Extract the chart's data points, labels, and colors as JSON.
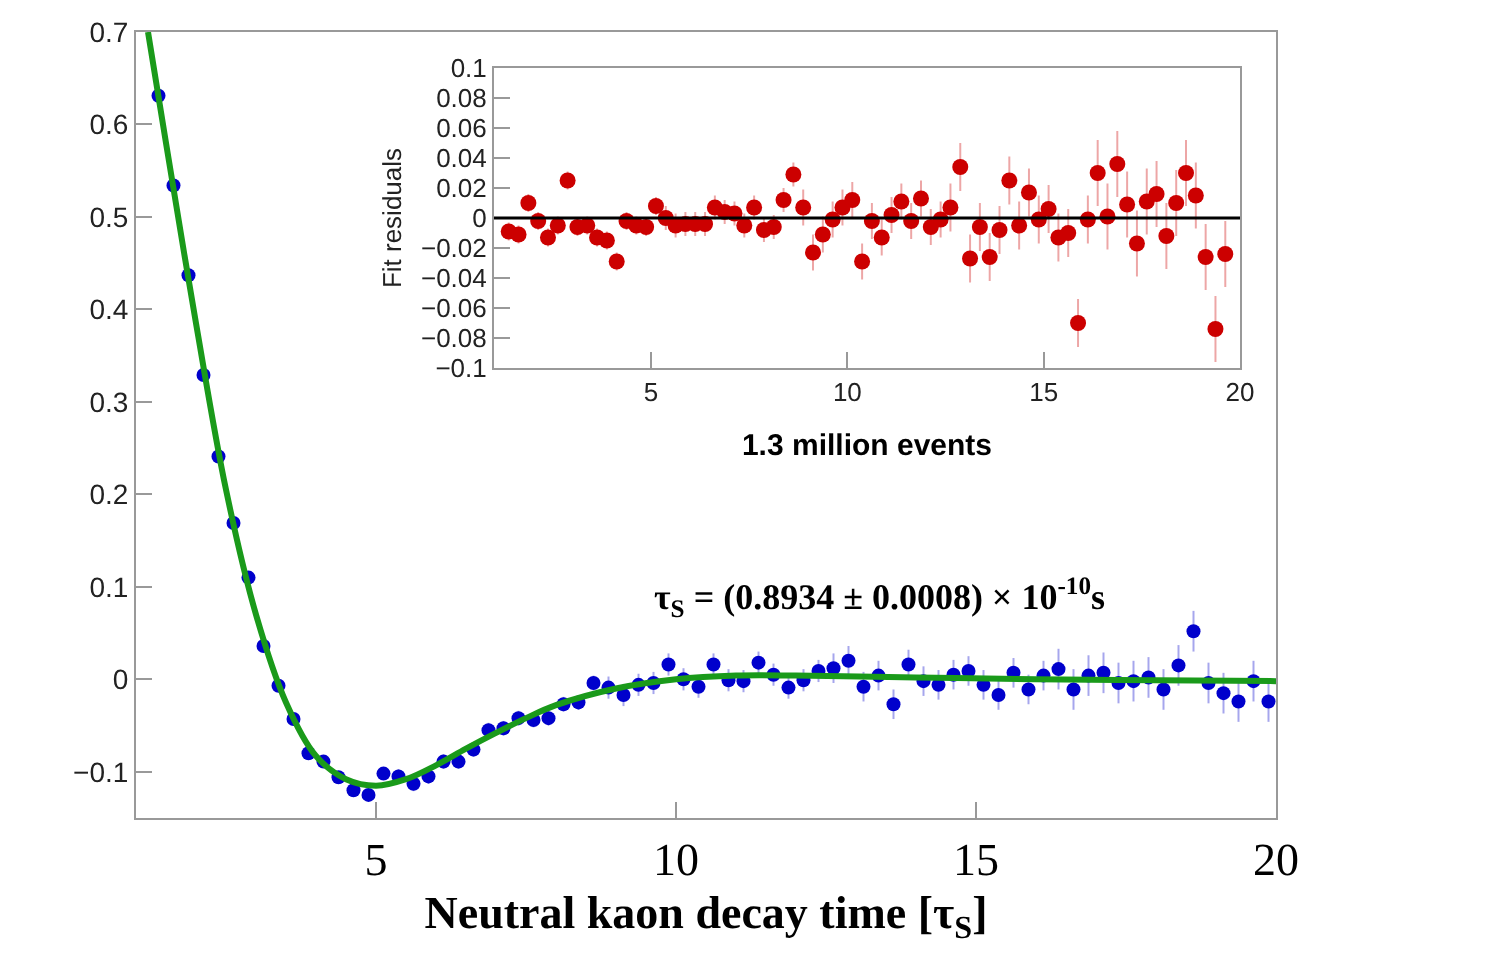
{
  "chart_data": [
    {
      "type": "scatter",
      "xlabel": "Neutral kaon decay time [τ$_{S}$]",
      "annotations": [
        "τ$_{S}$ = (0.8934 ± 0.0008) × 10$^{-10}$s"
      ],
      "xlim": [
        1,
        20
      ],
      "ylim": [
        -0.15,
        0.7
      ],
      "xticks": [
        5,
        10,
        15,
        20
      ],
      "yticks": [
        {
          "value": -0.1,
          "label": "−0.1"
        },
        0,
        0.1,
        0.2,
        0.3,
        0.4,
        0.5,
        0.6,
        0.7
      ],
      "legend": false,
      "marker": "circle",
      "series": [
        {
          "color": "#0000cc",
          "x": [
            1.375,
            1.625,
            1.875,
            2.125,
            2.375,
            2.625,
            2.875,
            3.125,
            3.375,
            3.625,
            3.875,
            4.125,
            4.375,
            4.625,
            4.875,
            5.125,
            5.375,
            5.625,
            5.875,
            6.125,
            6.375,
            6.625,
            6.875,
            7.125,
            7.375,
            7.625,
            7.875,
            8.125,
            8.375,
            8.625,
            8.875,
            9.125,
            9.375,
            9.625,
            9.875,
            10.125,
            10.375,
            10.625,
            10.875,
            11.125,
            11.375,
            11.625,
            11.875,
            12.125,
            12.375,
            12.625,
            12.875,
            13.125,
            13.375,
            13.625,
            13.875,
            14.125,
            14.375,
            14.625,
            14.875,
            15.125,
            15.375,
            15.625,
            15.875,
            16.125,
            16.375,
            16.625,
            16.875,
            17.125,
            17.375,
            17.625,
            17.875,
            18.125,
            18.375,
            18.625,
            18.875,
            19.125,
            19.375,
            19.625,
            19.875
          ],
          "values": [
            0.631,
            0.534,
            0.437,
            0.329,
            0.241,
            0.169,
            0.11,
            0.036,
            -0.007,
            -0.043,
            -0.08,
            -0.089,
            -0.106,
            -0.12,
            -0.125,
            -0.102,
            -0.105,
            -0.113,
            -0.105,
            -0.089,
            -0.089,
            -0.076,
            -0.055,
            -0.053,
            -0.042,
            -0.044,
            -0.042,
            -0.027,
            -0.025,
            -0.004,
            -0.009,
            -0.017,
            -0.006,
            -0.004,
            0.016,
            0.0,
            -0.008,
            0.016,
            -0.001,
            -0.002,
            0.018,
            0.005,
            -0.009,
            -0.001,
            0.009,
            0.012,
            0.02,
            -0.008,
            0.004,
            -0.027,
            0.016,
            -0.002,
            -0.006,
            0.005,
            0.009,
            -0.006,
            -0.017,
            0.007,
            -0.011,
            0.004,
            0.011,
            -0.011,
            0.004,
            0.007,
            -0.004,
            -0.002,
            0.002,
            -0.011,
            0.015,
            0.052,
            -0.004,
            -0.015,
            -0.024,
            -0.002,
            -0.024
          ],
          "errors": [
            0.006,
            0.006,
            0.006,
            0.006,
            0.006,
            0.006,
            0.006,
            0.006,
            0.006,
            0.006,
            0.006,
            0.006,
            0.006,
            0.006,
            0.006,
            0.006,
            0.008,
            0.008,
            0.008,
            0.008,
            0.008,
            0.008,
            0.008,
            0.008,
            0.008,
            0.008,
            0.008,
            0.008,
            0.008,
            0.008,
            0.012,
            0.012,
            0.012,
            0.012,
            0.012,
            0.012,
            0.012,
            0.012,
            0.012,
            0.012,
            0.012,
            0.012,
            0.012,
            0.012,
            0.012,
            0.016,
            0.016,
            0.016,
            0.016,
            0.016,
            0.016,
            0.016,
            0.016,
            0.016,
            0.016,
            0.016,
            0.016,
            0.016,
            0.016,
            0.016,
            0.022,
            0.022,
            0.022,
            0.022,
            0.022,
            0.022,
            0.022,
            0.022,
            0.022,
            0.022,
            0.022,
            0.022,
            0.022,
            0.022,
            0.022
          ]
        },
        {
          "type": "line",
          "color": "#1a9a1a",
          "marker": "none",
          "x": [
            1.2,
            1.5,
            2,
            2.5,
            3,
            3.5,
            4,
            4.5,
            5,
            5.5,
            6,
            6.5,
            7,
            7.5,
            8,
            9,
            10,
            11,
            12,
            14,
            16,
            18,
            20
          ],
          "values": [
            0.7,
            0.58,
            0.385,
            0.205,
            0.07,
            -0.025,
            -0.083,
            -0.108,
            -0.115,
            -0.108,
            -0.093,
            -0.075,
            -0.058,
            -0.042,
            -0.028,
            -0.01,
            0.0,
            0.004,
            0.004,
            0.002,
            0.0,
            -0.001,
            -0.002
          ]
        }
      ]
    },
    {
      "type": "scatter",
      "xlabel": "1.3 million events",
      "ylabel": "Fit residuals",
      "xlim": [
        1,
        20
      ],
      "ylim": [
        -0.1,
        0.1
      ],
      "xticks": [
        5,
        10,
        15,
        20
      ],
      "yticks": [
        {
          "value": -0.1,
          "label": "−0.1"
        },
        {
          "value": -0.08,
          "label": "−0.08"
        },
        {
          "value": -0.06,
          "label": "−0.06"
        },
        {
          "value": -0.04,
          "label": "−0.04"
        },
        {
          "value": -0.02,
          "label": "−0.02"
        },
        0,
        0.02,
        0.04,
        0.06,
        0.08,
        0.1
      ],
      "legend": false,
      "marker": "circle",
      "ref_lines": [
        {
          "axis": "y",
          "value": 0,
          "color": "#000000"
        }
      ],
      "series": [
        {
          "color": "#cc0000",
          "x": [
            1.375,
            1.625,
            1.875,
            2.125,
            2.375,
            2.625,
            2.875,
            3.125,
            3.375,
            3.625,
            3.875,
            4.125,
            4.375,
            4.625,
            4.875,
            5.125,
            5.375,
            5.625,
            5.875,
            6.125,
            6.375,
            6.625,
            6.875,
            7.125,
            7.375,
            7.625,
            7.875,
            8.125,
            8.375,
            8.625,
            8.875,
            9.125,
            9.375,
            9.625,
            9.875,
            10.125,
            10.375,
            10.625,
            10.875,
            11.125,
            11.375,
            11.625,
            11.875,
            12.125,
            12.375,
            12.625,
            12.875,
            13.125,
            13.375,
            13.625,
            13.875,
            14.125,
            14.375,
            14.625,
            14.875,
            15.125,
            15.375,
            15.625,
            15.875,
            16.125,
            16.375,
            16.625,
            16.875,
            17.125,
            17.375,
            17.625,
            17.875,
            18.125,
            18.375,
            18.625,
            18.875,
            19.125,
            19.375,
            19.625
          ],
          "values": [
            -0.009,
            -0.011,
            0.01,
            -0.002,
            -0.013,
            -0.005,
            0.025,
            -0.006,
            -0.005,
            -0.013,
            -0.015,
            -0.029,
            -0.002,
            -0.005,
            -0.006,
            0.008,
            0.0,
            -0.005,
            -0.004,
            -0.004,
            -0.004,
            0.007,
            0.004,
            0.003,
            -0.005,
            0.007,
            -0.008,
            -0.006,
            0.012,
            0.029,
            0.007,
            -0.023,
            -0.011,
            -0.001,
            0.007,
            0.012,
            -0.029,
            -0.002,
            -0.013,
            0.002,
            0.011,
            -0.002,
            0.013,
            -0.006,
            -0.001,
            0.007,
            0.034,
            -0.027,
            -0.006,
            -0.026,
            -0.008,
            0.025,
            -0.005,
            0.017,
            -0.001,
            0.006,
            -0.013,
            -0.01,
            -0.07,
            -0.001,
            0.03,
            0.001,
            0.036,
            0.009,
            -0.017,
            0.011,
            0.016,
            -0.012,
            0.01,
            0.03,
            0.015,
            -0.026,
            -0.074,
            -0.024
          ],
          "errors": [
            0.006,
            0.006,
            0.006,
            0.006,
            0.006,
            0.006,
            0.006,
            0.006,
            0.006,
            0.006,
            0.006,
            0.006,
            0.006,
            0.006,
            0.006,
            0.006,
            0.008,
            0.008,
            0.008,
            0.008,
            0.008,
            0.008,
            0.008,
            0.008,
            0.008,
            0.008,
            0.008,
            0.008,
            0.008,
            0.008,
            0.012,
            0.012,
            0.012,
            0.012,
            0.012,
            0.012,
            0.012,
            0.012,
            0.012,
            0.012,
            0.012,
            0.012,
            0.012,
            0.012,
            0.012,
            0.016,
            0.016,
            0.016,
            0.016,
            0.016,
            0.016,
            0.016,
            0.016,
            0.016,
            0.016,
            0.016,
            0.016,
            0.016,
            0.016,
            0.016,
            0.022,
            0.022,
            0.022,
            0.022,
            0.022,
            0.022,
            0.022,
            0.022,
            0.022,
            0.022,
            0.022,
            0.022,
            0.022,
            0.022
          ]
        }
      ]
    }
  ]
}
